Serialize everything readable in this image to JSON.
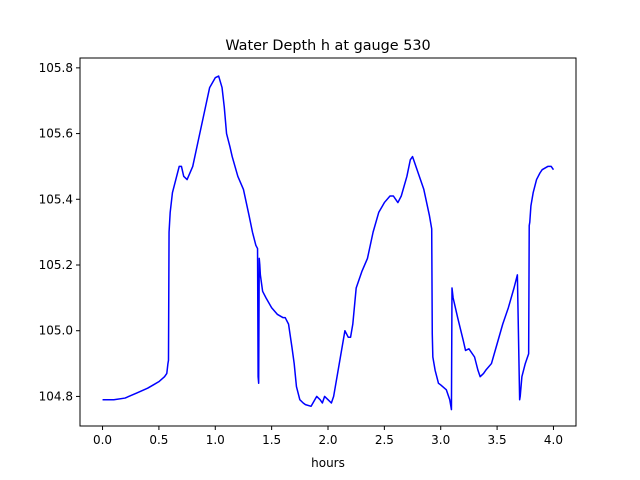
{
  "chart_data": {
    "type": "line",
    "title": "Water Depth h at gauge 530",
    "xlabel": "hours",
    "ylabel": "",
    "xlim": [
      -0.2,
      4.2
    ],
    "ylim": [
      104.71,
      105.83
    ],
    "xticks": [
      0.0,
      0.5,
      1.0,
      1.5,
      2.0,
      2.5,
      3.0,
      3.5,
      4.0
    ],
    "xtick_labels": [
      "0.0",
      "0.5",
      "1.0",
      "1.5",
      "2.0",
      "2.5",
      "3.0",
      "3.5",
      "4.0"
    ],
    "yticks": [
      104.8,
      105.0,
      105.2,
      105.4,
      105.6,
      105.8
    ],
    "ytick_labels": [
      "104.8",
      "105.0",
      "105.2",
      "105.4",
      "105.6",
      "105.8"
    ],
    "grid": false,
    "series": [
      {
        "name": "",
        "color": "#0000ff",
        "x": [
          0.0,
          0.1,
          0.2,
          0.3,
          0.4,
          0.45,
          0.5,
          0.55,
          0.57,
          0.58,
          0.585,
          0.59,
          0.6,
          0.62,
          0.65,
          0.68,
          0.7,
          0.72,
          0.75,
          0.8,
          0.85,
          0.9,
          0.95,
          1.0,
          1.03,
          1.06,
          1.08,
          1.1,
          1.13,
          1.15,
          1.2,
          1.25,
          1.3,
          1.33,
          1.36,
          1.375,
          1.38,
          1.385,
          1.39,
          1.395,
          1.4,
          1.42,
          1.45,
          1.5,
          1.55,
          1.6,
          1.62,
          1.65,
          1.68,
          1.7,
          1.72,
          1.75,
          1.78,
          1.8,
          1.85,
          1.9,
          1.93,
          1.95,
          1.97,
          2.0,
          2.03,
          2.05,
          2.08,
          2.1,
          2.15,
          2.18,
          2.2,
          2.22,
          2.25,
          2.3,
          2.35,
          2.4,
          2.45,
          2.5,
          2.55,
          2.58,
          2.6,
          2.62,
          2.65,
          2.7,
          2.73,
          2.75,
          2.8,
          2.85,
          2.9,
          2.92,
          2.925,
          2.93,
          2.95,
          2.98,
          3.0,
          3.05,
          3.08,
          3.09,
          3.095,
          3.1,
          3.11,
          3.13,
          3.15,
          3.2,
          3.22,
          3.25,
          3.3,
          3.33,
          3.35,
          3.38,
          3.4,
          3.45,
          3.5,
          3.55,
          3.6,
          3.65,
          3.68,
          3.7,
          3.705,
          3.71,
          3.715,
          3.72,
          3.75,
          3.78,
          3.785,
          3.79,
          3.8,
          3.82,
          3.85,
          3.88,
          3.9,
          3.95,
          3.98,
          4.0
        ],
        "y": [
          104.79,
          104.79,
          104.795,
          104.81,
          104.825,
          104.835,
          104.845,
          104.86,
          104.87,
          104.9,
          104.91,
          105.3,
          105.36,
          105.42,
          105.46,
          105.5,
          105.5,
          105.47,
          105.46,
          105.5,
          105.58,
          105.66,
          105.74,
          105.77,
          105.775,
          105.74,
          105.68,
          105.6,
          105.56,
          105.53,
          105.47,
          105.43,
          105.35,
          105.3,
          105.26,
          105.25,
          104.86,
          104.84,
          105.22,
          105.2,
          105.17,
          105.12,
          105.1,
          105.07,
          105.05,
          105.04,
          105.04,
          105.02,
          104.95,
          104.9,
          104.83,
          104.79,
          104.78,
          104.775,
          104.77,
          104.8,
          104.79,
          104.78,
          104.8,
          104.79,
          104.78,
          104.8,
          104.86,
          104.9,
          105.0,
          104.98,
          104.98,
          105.02,
          105.13,
          105.18,
          105.22,
          105.3,
          105.36,
          105.39,
          105.41,
          105.41,
          105.4,
          105.39,
          105.41,
          105.47,
          105.52,
          105.53,
          105.48,
          105.43,
          105.35,
          105.31,
          104.99,
          104.92,
          104.88,
          104.84,
          104.835,
          104.82,
          104.79,
          104.77,
          104.76,
          105.13,
          105.1,
          105.07,
          105.04,
          104.97,
          104.94,
          104.945,
          104.92,
          104.88,
          104.86,
          104.87,
          104.88,
          104.9,
          104.96,
          105.02,
          105.07,
          105.13,
          105.17,
          104.79,
          104.8,
          104.82,
          104.84,
          104.86,
          104.9,
          104.93,
          105.32,
          105.33,
          105.38,
          105.42,
          105.46,
          105.48,
          105.49,
          105.5,
          105.5,
          105.49
        ]
      }
    ]
  }
}
